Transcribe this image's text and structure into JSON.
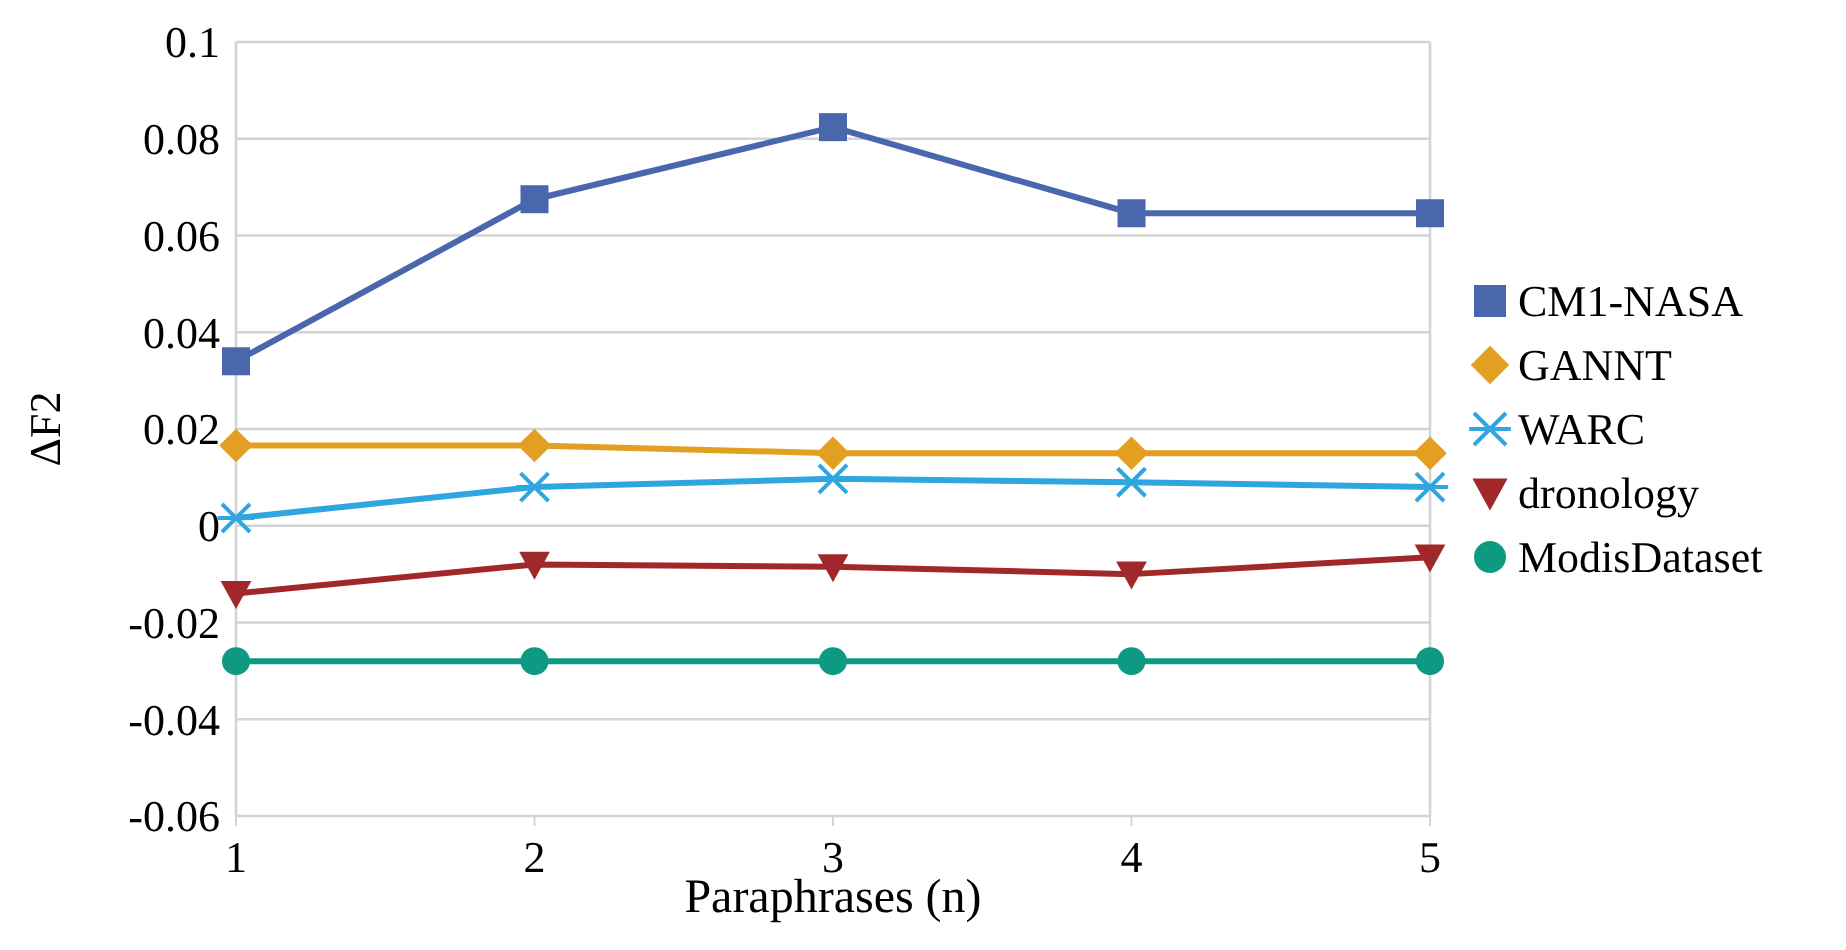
{
  "chart_data": {
    "type": "line",
    "xlabel": "Paraphrases (n)",
    "ylabel": "ΔF2",
    "x": [
      1,
      2,
      3,
      4,
      5
    ],
    "xlim": [
      1,
      5
    ],
    "xticks": [
      1,
      2,
      3,
      4,
      5
    ],
    "ylim": [
      -0.06,
      0.1
    ],
    "yticks": [
      -0.06,
      -0.04,
      -0.02,
      0,
      0.02,
      0.04,
      0.06,
      0.08,
      0.1
    ],
    "grid": "y",
    "legend": "right",
    "series": [
      {
        "name": "CM1-NASA",
        "color": "#4a66ac",
        "marker": "square",
        "values": [
          0.034,
          0.0675,
          0.0824,
          0.0646,
          0.0646
        ]
      },
      {
        "name": "GANNT",
        "color": "#e29f22",
        "marker": "diamond",
        "values": [
          0.0166,
          0.0166,
          0.015,
          0.015,
          0.015
        ]
      },
      {
        "name": "WARC",
        "color": "#2ea7e0",
        "marker": "cross",
        "values": [
          0.0016,
          0.008,
          0.0097,
          0.009,
          0.008
        ]
      },
      {
        "name": "dronology",
        "color": "#a0282a",
        "marker": "triangle",
        "values": [
          -0.014,
          -0.008,
          -0.0085,
          -0.01,
          -0.0065
        ]
      },
      {
        "name": "ModisDataset",
        "color": "#0e9a82",
        "marker": "circle",
        "values": [
          -0.028,
          -0.028,
          -0.028,
          -0.028,
          -0.028
        ]
      }
    ]
  }
}
